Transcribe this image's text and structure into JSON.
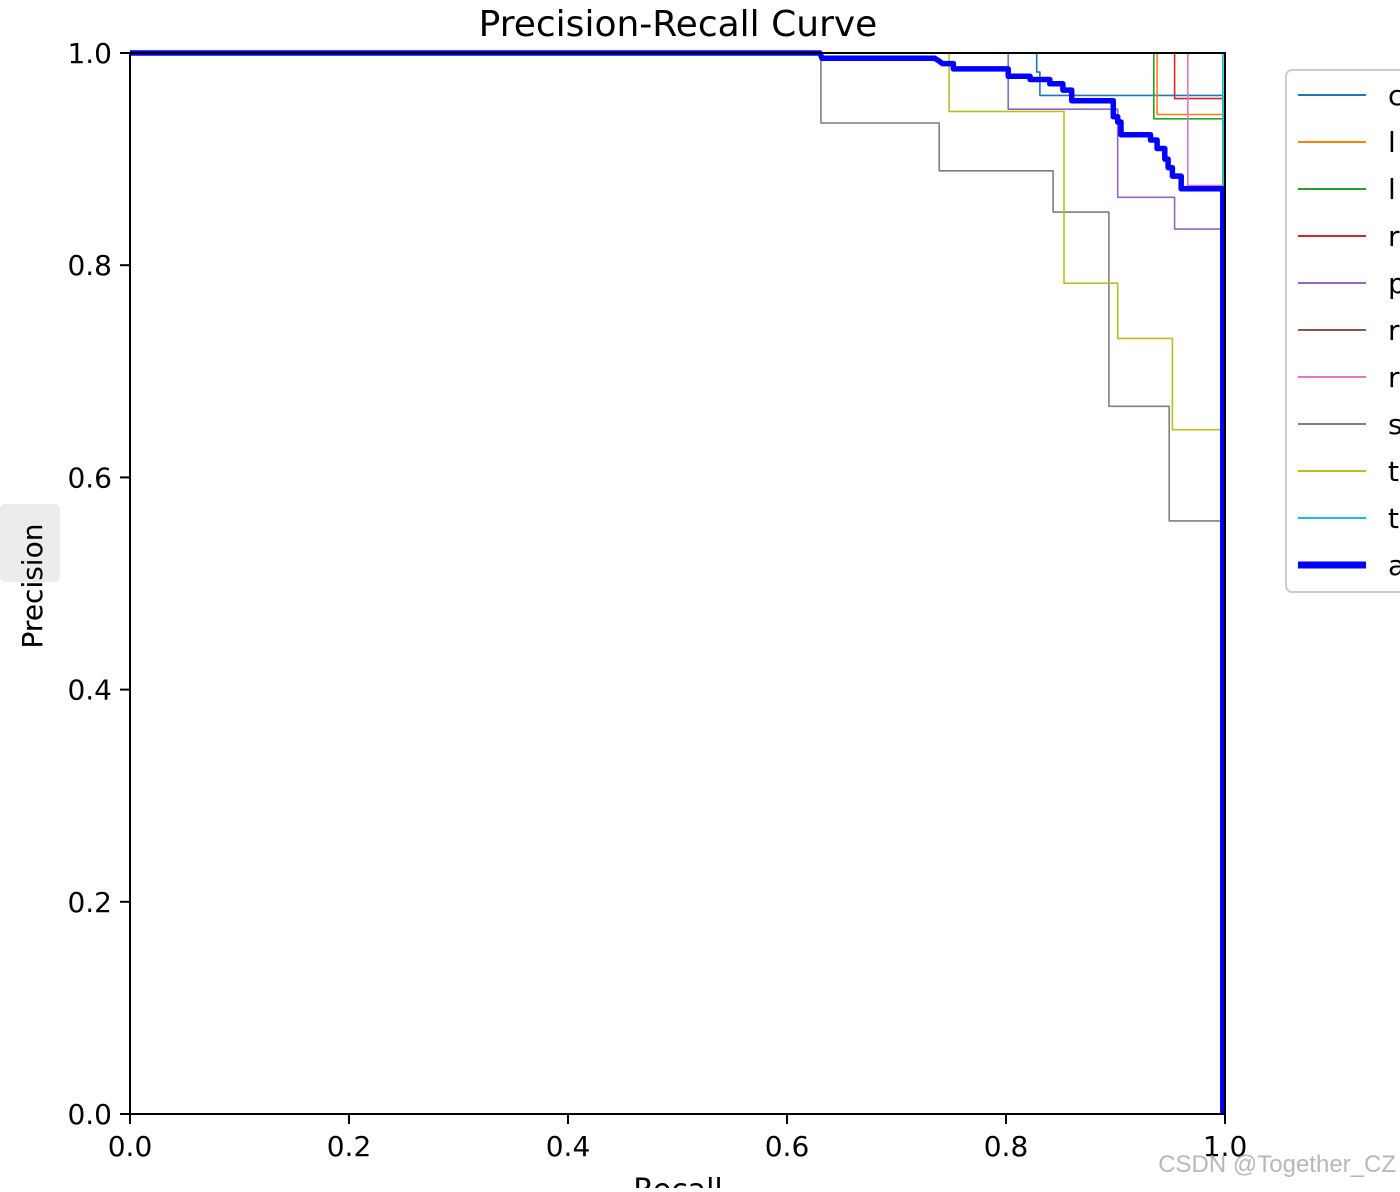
{
  "chart_data": {
    "type": "line",
    "title": "Precision-Recall Curve",
    "xlabel": "Recall",
    "ylabel": "Precision",
    "xlim": [
      0,
      1
    ],
    "ylim": [
      0,
      1
    ],
    "xticks": [
      "0.0",
      "0.2",
      "0.4",
      "0.6",
      "0.8",
      "1.0"
    ],
    "yticks": [
      "0.0",
      "0.2",
      "0.4",
      "0.6",
      "0.8",
      "1.0"
    ],
    "grid": false,
    "legend_position": "upper right, outside plot (clipped)",
    "legend_labels": [
      "c",
      "l",
      "l",
      "r",
      "p",
      "r",
      "r",
      "s",
      "t",
      "t",
      "a"
    ],
    "series": [
      {
        "color": "#1f77b4",
        "width": 1.6,
        "points": [
          [
            0,
            1
          ],
          [
            0.828,
            1
          ],
          [
            0.828,
            0.982
          ],
          [
            0.831,
            0.982
          ],
          [
            0.831,
            0.96
          ],
          [
            0.998,
            0.96
          ],
          [
            0.998,
            0
          ]
        ]
      },
      {
        "color": "#ff7f0e",
        "width": 1.6,
        "points": [
          [
            0,
            1
          ],
          [
            0.938,
            1
          ],
          [
            0.938,
            0.942
          ],
          [
            0.998,
            0.942
          ],
          [
            0.998,
            0
          ]
        ]
      },
      {
        "color": "#2ca02c",
        "width": 1.6,
        "points": [
          [
            0,
            1
          ],
          [
            0.935,
            1
          ],
          [
            0.935,
            0.938
          ],
          [
            0.998,
            0.938
          ],
          [
            0.998,
            0
          ]
        ]
      },
      {
        "color": "#d62728",
        "width": 1.6,
        "points": [
          [
            0,
            1
          ],
          [
            0.954,
            1
          ],
          [
            0.954,
            0.957
          ],
          [
            0.998,
            0.957
          ],
          [
            0.998,
            0
          ]
        ]
      },
      {
        "color": "#9467bd",
        "width": 1.6,
        "points": [
          [
            0,
            1
          ],
          [
            0.802,
            1
          ],
          [
            0.802,
            0.947
          ],
          [
            0.902,
            0.947
          ],
          [
            0.902,
            0.864
          ],
          [
            0.954,
            0.864
          ],
          [
            0.954,
            0.834
          ],
          [
            0.998,
            0.834
          ],
          [
            0.998,
            0
          ]
        ]
      },
      {
        "color": "#8c564b",
        "width": 1.6,
        "points": [
          [
            0,
            1
          ],
          [
            0.998,
            1
          ],
          [
            0.998,
            0
          ]
        ]
      },
      {
        "color": "#e377c2",
        "width": 1.6,
        "points": [
          [
            0,
            1
          ],
          [
            0.966,
            1
          ],
          [
            0.966,
            0.875
          ],
          [
            0.998,
            0.875
          ],
          [
            0.998,
            0
          ]
        ]
      },
      {
        "color": "#7f7f7f",
        "width": 1.6,
        "points": [
          [
            0,
            1
          ],
          [
            0.631,
            1
          ],
          [
            0.631,
            0.934
          ],
          [
            0.739,
            0.934
          ],
          [
            0.739,
            0.889
          ],
          [
            0.843,
            0.889
          ],
          [
            0.843,
            0.85
          ],
          [
            0.894,
            0.85
          ],
          [
            0.894,
            0.667
          ],
          [
            0.949,
            0.667
          ],
          [
            0.949,
            0.559
          ],
          [
            0.998,
            0.559
          ],
          [
            0.998,
            0
          ]
        ]
      },
      {
        "color": "#bcbd22",
        "width": 1.6,
        "points": [
          [
            0,
            1
          ],
          [
            0.748,
            1
          ],
          [
            0.748,
            0.945
          ],
          [
            0.853,
            0.945
          ],
          [
            0.853,
            0.783
          ],
          [
            0.902,
            0.783
          ],
          [
            0.902,
            0.731
          ],
          [
            0.952,
            0.731
          ],
          [
            0.952,
            0.645
          ],
          [
            0.998,
            0.645
          ],
          [
            0.998,
            0
          ]
        ]
      },
      {
        "color": "#17becf",
        "width": 1.6,
        "points": [
          [
            0,
            1
          ],
          [
            0.998,
            1
          ],
          [
            0.998,
            0
          ]
        ]
      },
      {
        "color": "#0000ff",
        "width": 5.5,
        "points": [
          [
            0,
            1
          ],
          [
            0.63,
            1
          ],
          [
            0.632,
            0.995
          ],
          [
            0.735,
            0.995
          ],
          [
            0.738,
            0.993
          ],
          [
            0.742,
            0.99
          ],
          [
            0.752,
            0.99
          ],
          [
            0.752,
            0.985
          ],
          [
            0.802,
            0.985
          ],
          [
            0.802,
            0.978
          ],
          [
            0.822,
            0.978
          ],
          [
            0.822,
            0.975
          ],
          [
            0.84,
            0.975
          ],
          [
            0.84,
            0.971
          ],
          [
            0.852,
            0.971
          ],
          [
            0.852,
            0.965
          ],
          [
            0.86,
            0.965
          ],
          [
            0.86,
            0.955
          ],
          [
            0.898,
            0.955
          ],
          [
            0.898,
            0.94
          ],
          [
            0.902,
            0.94
          ],
          [
            0.902,
            0.935
          ],
          [
            0.905,
            0.935
          ],
          [
            0.905,
            0.923
          ],
          [
            0.932,
            0.923
          ],
          [
            0.932,
            0.918
          ],
          [
            0.938,
            0.918
          ],
          [
            0.938,
            0.91
          ],
          [
            0.945,
            0.91
          ],
          [
            0.945,
            0.9
          ],
          [
            0.948,
            0.9
          ],
          [
            0.948,
            0.892
          ],
          [
            0.952,
            0.892
          ],
          [
            0.952,
            0.884
          ],
          [
            0.96,
            0.884
          ],
          [
            0.96,
            0.872
          ],
          [
            0.998,
            0.872
          ],
          [
            0.998,
            0
          ]
        ]
      }
    ]
  },
  "watermark": "CSDN @Together_CZ"
}
